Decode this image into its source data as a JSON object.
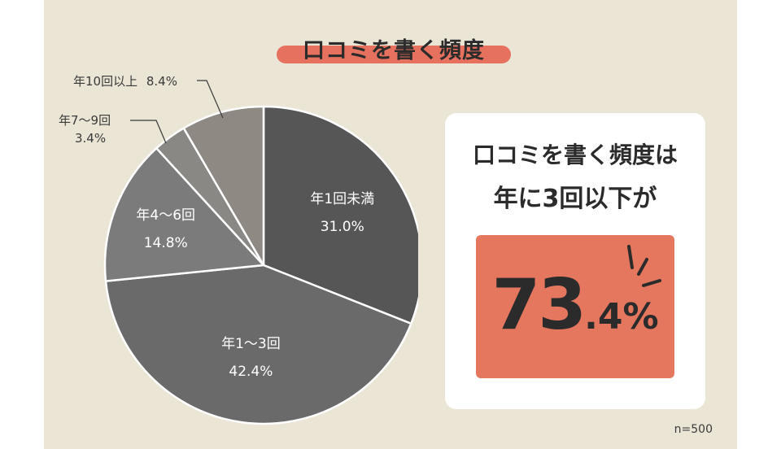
{
  "title": "口コミを書く頻度",
  "chart_data": {
    "type": "pie",
    "title": "口コミを書く頻度",
    "slices": [
      {
        "label": "年1回未満",
        "value": 31.0,
        "value_label": "31.0%",
        "color": "#565656",
        "label_position": "inside"
      },
      {
        "label": "年1～3回",
        "value": 42.4,
        "value_label": "42.4%",
        "color": "#6a6a6a",
        "label_position": "inside"
      },
      {
        "label": "年4～6回",
        "value": 14.8,
        "value_label": "14.8%",
        "color": "#7b7b7b",
        "label_position": "inside"
      },
      {
        "label": "年7～9回",
        "value": 3.4,
        "value_label": "3.4%",
        "color": "#898884",
        "label_position": "outside"
      },
      {
        "label": "年10回以上",
        "value": 8.4,
        "value_label": "8.4%",
        "color": "#8e8a83",
        "label_position": "outside"
      }
    ],
    "start": "12 o'clock, clockwise"
  },
  "callout": {
    "line1": "口コミを書く頻度は",
    "line2": "年に3回以下が",
    "value_int": "73",
    "value_dec": ".4%"
  },
  "sample_size": "n=500",
  "colors": {
    "background": "#ebe5d6",
    "accent": "#e5775f",
    "text": "#2b2b2b"
  }
}
